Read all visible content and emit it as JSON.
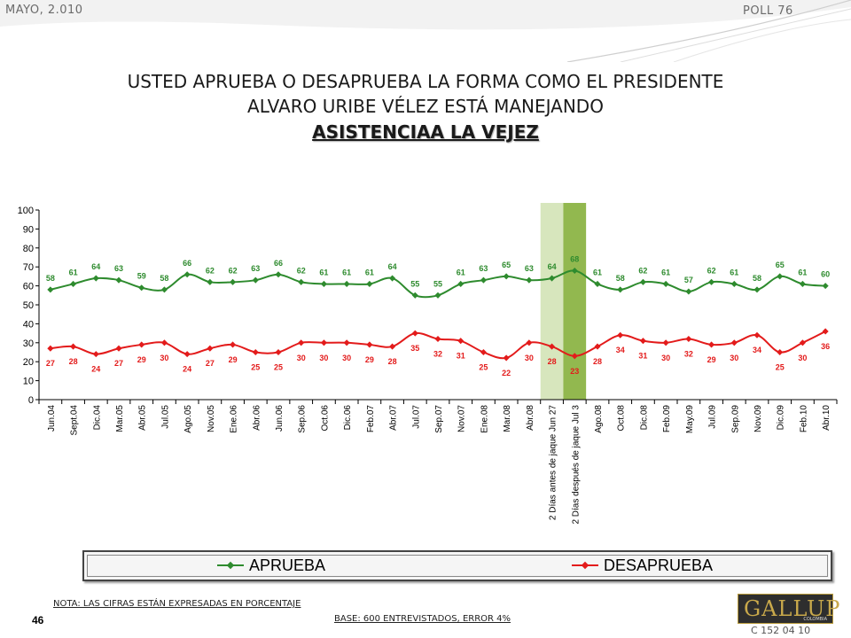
{
  "header": {
    "date": "MAYO, 2.010",
    "poll": "POLL 76"
  },
  "title": {
    "line1": "USTED APRUEBA O DESAPRUEBA LA FORMA COMO EL PRESIDENTE",
    "line2": "ALVARO URIBE VÉLEZ ESTÁ MANEJANDO",
    "line3": "ASISTENCIAA LA VEJEZ"
  },
  "chart_data": {
    "type": "line",
    "categories": [
      "Jun.04",
      "Sept.04",
      "Dic.04",
      "Mar.05",
      "Abr.05",
      "Jul.05",
      "Ago.05",
      "Nov.05",
      "Ene.06",
      "Abr.06",
      "Jun.06",
      "Sep.06",
      "Oct.06",
      "Dic.06",
      "Feb.07",
      "Abr.07",
      "Jul.07",
      "Sep.07",
      "Nov.07",
      "Ene.08",
      "Mar.08",
      "Abr.08",
      "2 Días antes de jaque Jun 27",
      "2 Días después de jaque Jul 3",
      "Ago.08",
      "Oct.08",
      "Dic.08",
      "Feb.09",
      "May.09",
      "Jul.09",
      "Sep.09",
      "Nov.09",
      "Dic.09",
      "Feb.10",
      "Abr.10"
    ],
    "series": [
      {
        "name": "APRUEBA",
        "color": "#2e8b2e",
        "values": [
          58,
          61,
          64,
          63,
          59,
          58,
          66,
          62,
          62,
          63,
          66,
          62,
          61,
          61,
          61,
          64,
          55,
          55,
          61,
          63,
          65,
          63,
          64,
          68,
          61,
          58,
          62,
          61,
          57,
          62,
          61,
          58,
          65,
          61,
          60
        ]
      },
      {
        "name": "DESAPRUEBA",
        "color": "#e31b1b",
        "values": [
          27,
          28,
          24,
          27,
          29,
          30,
          24,
          27,
          29,
          25,
          25,
          30,
          30,
          30,
          29,
          28,
          35,
          32,
          31,
          25,
          22,
          30,
          28,
          23,
          28,
          34,
          31,
          30,
          32,
          29,
          30,
          34,
          25,
          30,
          36
        ]
      }
    ],
    "ylim": [
      0,
      100
    ],
    "yticks": [
      0,
      10,
      20,
      30,
      40,
      50,
      60,
      70,
      80,
      90,
      100
    ],
    "highlight_categories": [
      {
        "index": 22,
        "color": "#d7e6bd"
      },
      {
        "index": 23,
        "color": "#92b84f"
      }
    ],
    "legend_position": "bottom"
  },
  "notes": {
    "note": "NOTA: LAS CIFRAS ESTÁN EXPRESADAS EN PORCENTAJE",
    "base": "BASE: 600 ENTREVISTADOS, ERROR 4%",
    "page": "46",
    "code": "C 152 04 10"
  },
  "logo": {
    "name": "GALLUP",
    "sub": "COLOMBIA"
  }
}
